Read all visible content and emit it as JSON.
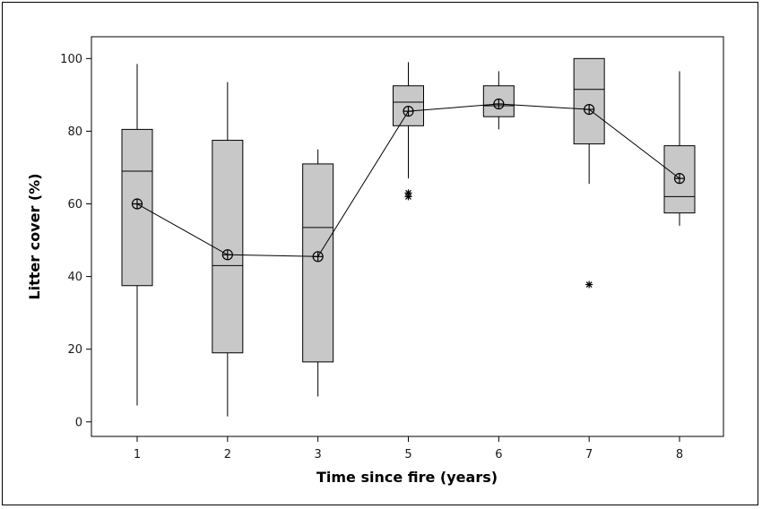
{
  "chart_data": {
    "type": "box",
    "xlabel": "Time since fire (years)",
    "ylabel": "Litter cover (%)",
    "ylim": [
      -4,
      106
    ],
    "yticks": [
      0,
      20,
      40,
      60,
      80,
      100
    ],
    "grid": false,
    "categories": [
      "1",
      "2",
      "3",
      "5",
      "6",
      "7",
      "8"
    ],
    "boxes": [
      {
        "category": "1",
        "whisker_low": 4.5,
        "q1": 37.5,
        "median": 69,
        "q3": 80.5,
        "whisker_high": 98.5,
        "mean": 60,
        "outliers": []
      },
      {
        "category": "2",
        "whisker_low": 1.5,
        "q1": 19,
        "median": 43,
        "q3": 77.5,
        "whisker_high": 93.5,
        "mean": 46,
        "outliers": []
      },
      {
        "category": "3",
        "whisker_low": 7,
        "q1": 16.5,
        "median": 53.5,
        "q3": 71,
        "whisker_high": 75,
        "mean": 45.5,
        "outliers": []
      },
      {
        "category": "5",
        "whisker_low": 67,
        "q1": 81.5,
        "median": 88,
        "q3": 92.5,
        "whisker_high": 99,
        "mean": 85.5,
        "outliers": [
          63,
          62
        ]
      },
      {
        "category": "6",
        "whisker_low": 80.5,
        "q1": 84,
        "median": 87,
        "q3": 92.5,
        "whisker_high": 96.5,
        "mean": 87.5,
        "outliers": []
      },
      {
        "category": "7",
        "whisker_low": 65.5,
        "q1": 76.5,
        "median": 91.5,
        "q3": 100,
        "whisker_high": 100,
        "mean": 86,
        "outliers": [
          37.8
        ]
      },
      {
        "category": "8",
        "whisker_low": 54,
        "q1": 57.5,
        "median": 62,
        "q3": 76,
        "whisker_high": 96.5,
        "mean": 67,
        "outliers": []
      }
    ],
    "mean_line": true,
    "colors": {
      "box_fill": "#c8c8c8",
      "stroke": "#000000",
      "tick_text": "#1a1a1a"
    }
  }
}
